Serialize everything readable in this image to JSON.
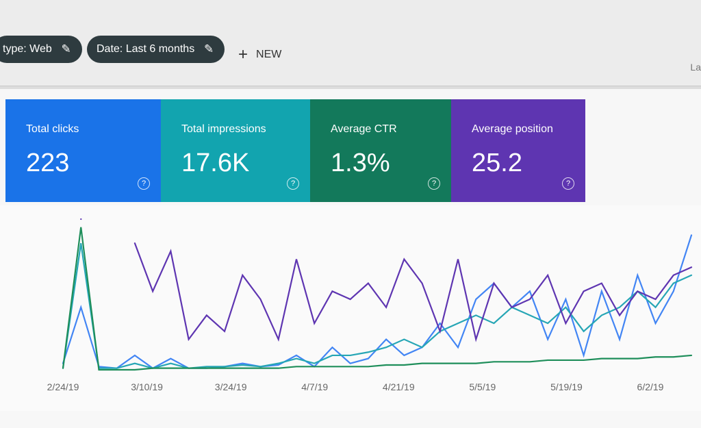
{
  "filters": [
    {
      "label": "type: Web"
    },
    {
      "label": "Date: Last 6 months"
    }
  ],
  "new_button": "NEW",
  "corner_text": "La",
  "cards": [
    {
      "title": "Total clicks",
      "value": "223",
      "color": "#1a73e8"
    },
    {
      "title": "Total impressions",
      "value": "17.6K",
      "color": "#12a4af"
    },
    {
      "title": "Average CTR",
      "value": "1.3%",
      "color": "#13795b"
    },
    {
      "title": "Average position",
      "value": "25.2",
      "color": "#5e35b1"
    }
  ],
  "chart_data": {
    "type": "line",
    "xtick_labels": [
      "2/24/19",
      "3/10/19",
      "3/24/19",
      "4/7/19",
      "4/21/19",
      "5/5/19",
      "5/19/19",
      "6/2/19"
    ],
    "series": [
      {
        "name": "Total clicks",
        "color": "#4285f4",
        "values": [
          5,
          40,
          3,
          2,
          10,
          2,
          8,
          2,
          2,
          3,
          5,
          3,
          4,
          10,
          3,
          15,
          5,
          8,
          20,
          10,
          15,
          30,
          15,
          45,
          55,
          40,
          50,
          20,
          45,
          10,
          50,
          20,
          60,
          30,
          50,
          85
        ]
      },
      {
        "name": "Total impressions",
        "color": "#26a6b5",
        "values": [
          2,
          80,
          2,
          2,
          5,
          2,
          5,
          2,
          3,
          3,
          4,
          3,
          5,
          8,
          5,
          10,
          10,
          12,
          15,
          20,
          15,
          25,
          30,
          35,
          30,
          40,
          35,
          30,
          40,
          25,
          35,
          40,
          50,
          40,
          55,
          60
        ]
      },
      {
        "name": "Average CTR",
        "color": "#1e8e5a",
        "values": [
          2,
          90,
          1,
          1,
          1,
          2,
          2,
          2,
          2,
          2,
          2,
          2,
          2,
          3,
          3,
          3,
          3,
          3,
          4,
          4,
          5,
          5,
          5,
          5,
          6,
          6,
          6,
          7,
          7,
          7,
          8,
          8,
          8,
          9,
          9,
          10
        ]
      },
      {
        "name": "Average position",
        "color": "#5e35b1",
        "values": [
          null,
          95,
          null,
          null,
          80,
          50,
          75,
          20,
          35,
          25,
          60,
          45,
          20,
          70,
          30,
          50,
          45,
          55,
          40,
          70,
          55,
          25,
          70,
          20,
          55,
          40,
          45,
          60,
          30,
          50,
          55,
          35,
          50,
          45,
          60,
          65
        ]
      }
    ]
  }
}
